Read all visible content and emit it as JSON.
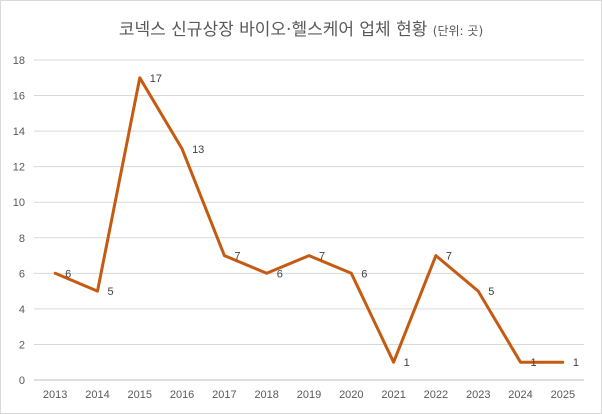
{
  "chart_data": {
    "type": "line",
    "title": "코넥스 신규상장 바이오·헬스케어 업체 현황",
    "unit_note": "(단위: 곳)",
    "xlabel": "",
    "ylabel": "",
    "categories": [
      "2013",
      "2014",
      "2015",
      "2016",
      "2017",
      "2018",
      "2019",
      "2020",
      "2021",
      "2022",
      "2023",
      "2024",
      "2025"
    ],
    "series": [
      {
        "values": [
          6,
          5,
          17,
          13,
          7,
          6,
          7,
          6,
          1,
          7,
          5,
          1,
          1
        ]
      }
    ],
    "ylim": [
      0,
      18
    ],
    "yticks": [
      0,
      2,
      4,
      6,
      8,
      10,
      12,
      14,
      16,
      18
    ],
    "grid": true,
    "legend": "none",
    "line_color": "#C55A11",
    "grid_color": "#D9D9D9",
    "axis_color": "#BFBFBF"
  }
}
